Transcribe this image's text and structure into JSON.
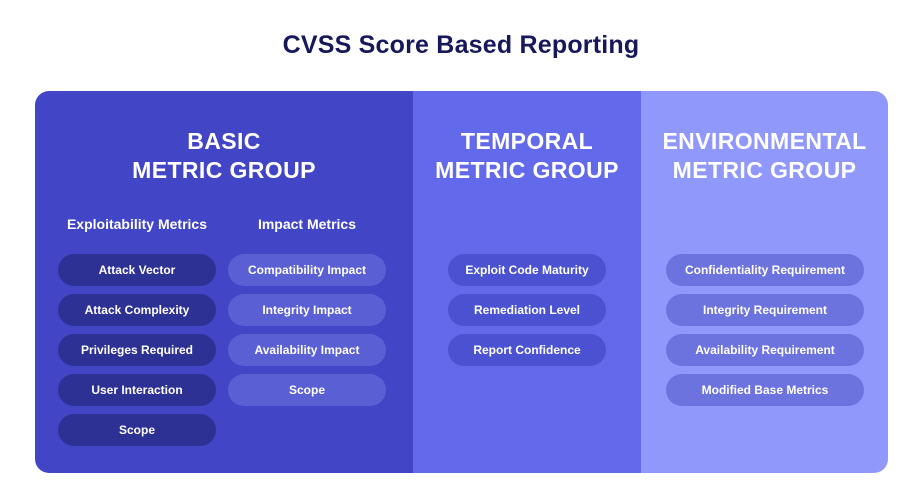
{
  "title": "CVSS Score Based Reporting",
  "groups": {
    "basic": {
      "heading_line1": "BASIC",
      "heading_line2": "METRIC GROUP",
      "exploitability": {
        "heading": "Exploitability Metrics",
        "items": [
          "Attack Vector",
          "Attack Complexity",
          "Privileges Required",
          "User Interaction",
          "Scope"
        ]
      },
      "impact": {
        "heading": "Impact Metrics",
        "items": [
          "Compatibility Impact",
          "Integrity Impact",
          "Availability Impact",
          "Scope"
        ]
      }
    },
    "temporal": {
      "heading_line1": "TEMPORAL",
      "heading_line2": "METRIC GROUP",
      "items": [
        "Exploit Code Maturity",
        "Remediation Level",
        "Report Confidence"
      ]
    },
    "environmental": {
      "heading_line1": "ENVIRONMENTAL",
      "heading_line2": "METRIC GROUP",
      "items": [
        "Confidentiality Requirement",
        "Integrity Requirement",
        "Availability Requirement",
        "Modified Base Metrics"
      ]
    }
  },
  "colors": {
    "title": "#17185a",
    "basic_panel": "#4145c6",
    "temporal_panel": "#6269ea",
    "environmental_panel": "#9098fb"
  }
}
